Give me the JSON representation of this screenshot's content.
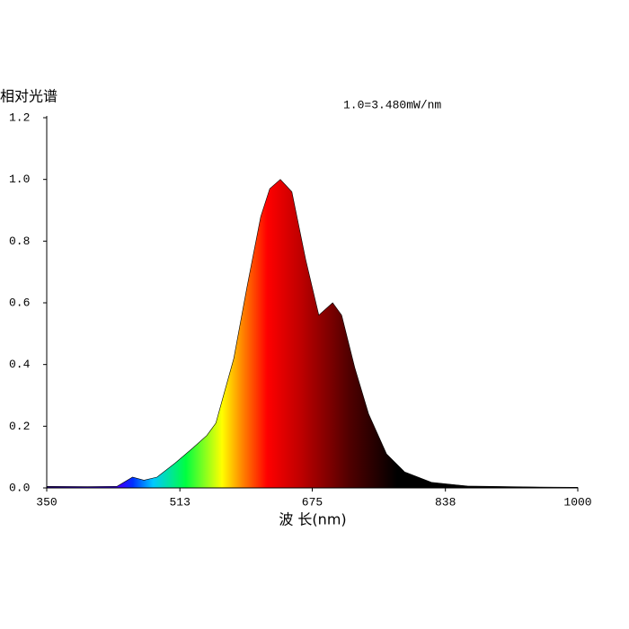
{
  "chart_data": {
    "type": "area",
    "y_label": "相对光谱",
    "x_label": "波 长(nm)",
    "annotation": "1.0=3.480mW/nm",
    "x": [
      350,
      400,
      436,
      455,
      469,
      485,
      507,
      529,
      546,
      557,
      579,
      595,
      612,
      623,
      636,
      650,
      667,
      683,
      700,
      711,
      727,
      744,
      766,
      788,
      821,
      865,
      953,
      1000
    ],
    "values": [
      0.005,
      0.004,
      0.005,
      0.035,
      0.025,
      0.035,
      0.08,
      0.13,
      0.17,
      0.21,
      0.42,
      0.65,
      0.88,
      0.97,
      1.0,
      0.96,
      0.74,
      0.56,
      0.6,
      0.56,
      0.39,
      0.24,
      0.11,
      0.052,
      0.018,
      0.006,
      0.003,
      0.002
    ],
    "xlim": [
      350,
      1000
    ],
    "xticks": [
      350,
      513,
      675,
      838,
      1000
    ],
    "ylim": [
      0,
      1.2
    ],
    "yticks": [
      {
        "value": 0,
        "label": "0.0"
      },
      0.2,
      0.4,
      0.6,
      0.8,
      {
        "value": 1,
        "label": "1.0"
      },
      1.2
    ]
  }
}
